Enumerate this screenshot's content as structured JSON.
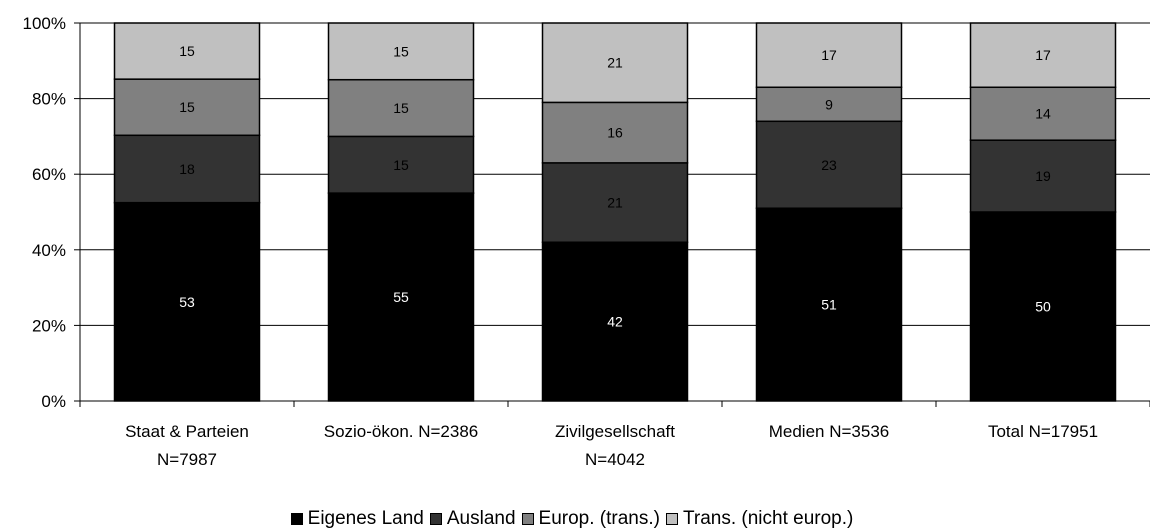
{
  "chart_data": {
    "type": "bar",
    "stacked": true,
    "percent": true,
    "categories": [
      [
        "Staat & Parteien",
        "N=7987"
      ],
      [
        "Sozio-ökon. N=2386"
      ],
      [
        "Zivilgesellschaft",
        "N=4042"
      ],
      [
        "Medien N=3536"
      ],
      [
        "Total N=17951"
      ]
    ],
    "series": [
      {
        "name": "Eigenes Land",
        "color": "#000000",
        "label_color": "#ffffff",
        "values": [
          53,
          55,
          42,
          51,
          50
        ]
      },
      {
        "name": "Ausland",
        "color": "#333333",
        "label_color": "#000000",
        "values": [
          18,
          15,
          21,
          23,
          19
        ]
      },
      {
        "name": "Europ. (trans.)",
        "color": "#808080",
        "label_color": "#000000",
        "values": [
          15,
          15,
          16,
          9,
          14
        ]
      },
      {
        "name": "Trans. (nicht europ.)",
        "color": "#c0c0c0",
        "label_color": "#000000",
        "values": [
          15,
          15,
          21,
          17,
          17
        ]
      }
    ],
    "yticks": [
      "0%",
      "20%",
      "40%",
      "60%",
      "80%",
      "100%"
    ],
    "ylim": [
      0,
      100
    ],
    "grid": true,
    "legend_position": "bottom"
  }
}
